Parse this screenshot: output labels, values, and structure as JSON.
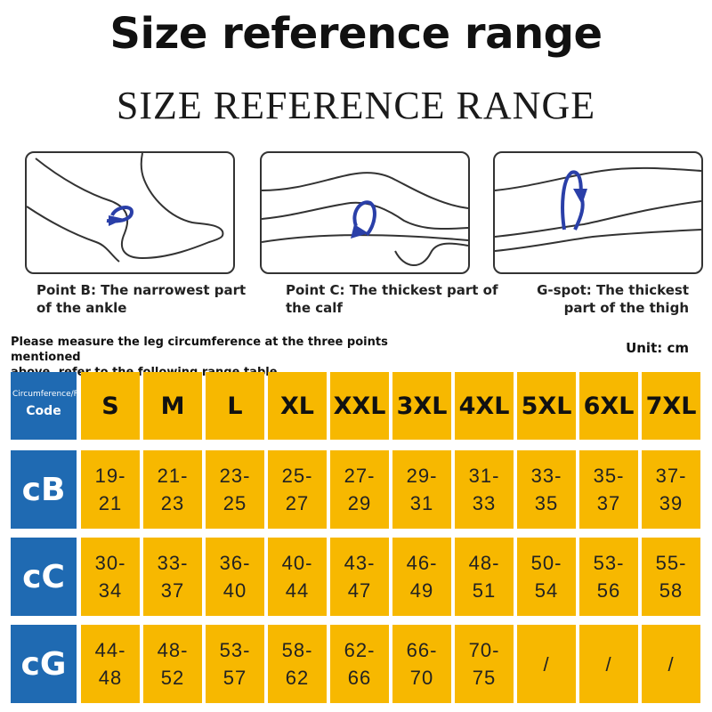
{
  "title": "Size reference range",
  "subtitle": "SIZE REFERENCE RANGE",
  "panels": [
    {
      "icon": "ankle-measure-icon",
      "caption_line1": "Point B: The narrowest part",
      "caption_line2": "of the ankle"
    },
    {
      "icon": "calf-measure-icon",
      "caption_line1": "Point C: The thickest part of",
      "caption_line2": "the calf"
    },
    {
      "icon": "thigh-measure-icon",
      "caption_line1": "G-spot: The thickest",
      "caption_line2": "part of the thigh"
    }
  ],
  "instruction_line1": "Please measure the leg circumference at the three points mentioned",
  "instruction_line2": "above, refer to the following range table",
  "unit": "Unit: cm",
  "table": {
    "corner_top": "Circumference/Foot",
    "corner_code": "Code",
    "sizes": [
      "S",
      "M",
      "L",
      "XL",
      "XXL",
      "3XL",
      "4XL",
      "5XL",
      "6XL",
      "7XL"
    ],
    "rows": [
      {
        "label": "cB",
        "values": [
          [
            "19-",
            "21"
          ],
          [
            "21-",
            "23"
          ],
          [
            "23-",
            "25"
          ],
          [
            "25-",
            "27"
          ],
          [
            "27-",
            "29"
          ],
          [
            "29-",
            "31"
          ],
          [
            "31-",
            "33"
          ],
          [
            "33-",
            "35"
          ],
          [
            "35-",
            "37"
          ],
          [
            "37-",
            "39"
          ]
        ]
      },
      {
        "label": "cC",
        "values": [
          [
            "30-",
            "34"
          ],
          [
            "33-",
            "37"
          ],
          [
            "36-",
            "40"
          ],
          [
            "40-",
            "44"
          ],
          [
            "43-",
            "47"
          ],
          [
            "46-",
            "49"
          ],
          [
            "48-",
            "51"
          ],
          [
            "50-",
            "54"
          ],
          [
            "53-",
            "56"
          ],
          [
            "55-",
            "58"
          ]
        ]
      },
      {
        "label": "cG",
        "values": [
          [
            "44-",
            "48"
          ],
          [
            "48-",
            "52"
          ],
          [
            "53-",
            "57"
          ],
          [
            "58-",
            "62"
          ],
          [
            "62-",
            "66"
          ],
          [
            "66-",
            "70"
          ],
          [
            "70-",
            "75"
          ],
          [
            "/"
          ],
          [
            "/"
          ],
          [
            "/"
          ]
        ]
      }
    ]
  },
  "colors": {
    "header_blue": "#1f6ab2",
    "cell_yellow": "#f7b800",
    "arrow_blue": "#2a3fa8"
  }
}
